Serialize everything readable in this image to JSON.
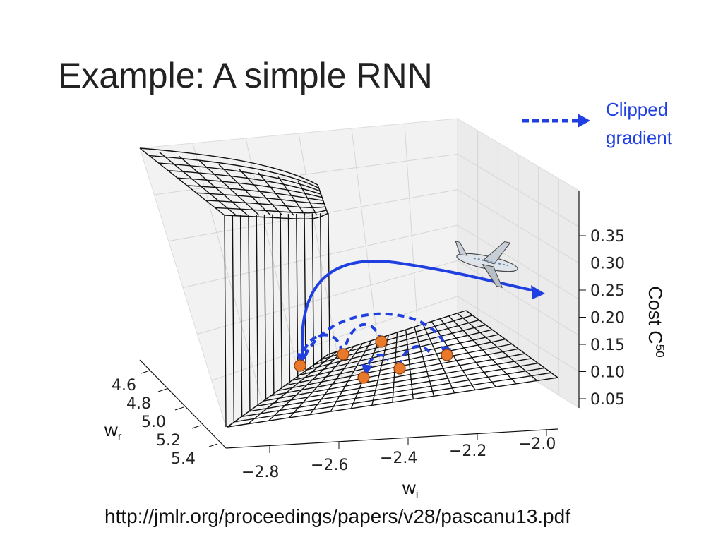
{
  "slide": {
    "title": "Example: A simple RNN",
    "source_url": "http://jmlr.org/proceedings/papers/v28/pascanu13.pdf"
  },
  "legend": {
    "line1": "Clipped",
    "line2": "gradient",
    "color": "#1f3fe0"
  },
  "chart_data": {
    "type": "surface",
    "title": "",
    "x_axis": {
      "label": "w",
      "subscript": "i",
      "ticks": [
        "-2.8",
        "-2.6",
        "-2.4",
        "-2.2",
        "-2.0"
      ]
    },
    "y_axis": {
      "label": "w",
      "subscript": "r",
      "ticks": [
        "4.6",
        "4.8",
        "5.0",
        "5.2",
        "5.4"
      ]
    },
    "z_axis": {
      "label": "Cost C",
      "superscript": "50",
      "ticks": [
        "0.05",
        "0.10",
        "0.15",
        "0.20",
        "0.25",
        "0.30",
        "0.35"
      ]
    },
    "grid": true,
    "annotation_icon": "airplane-icon",
    "points_color": "#e8782a",
    "arrow_color": "#1f3fe0"
  }
}
